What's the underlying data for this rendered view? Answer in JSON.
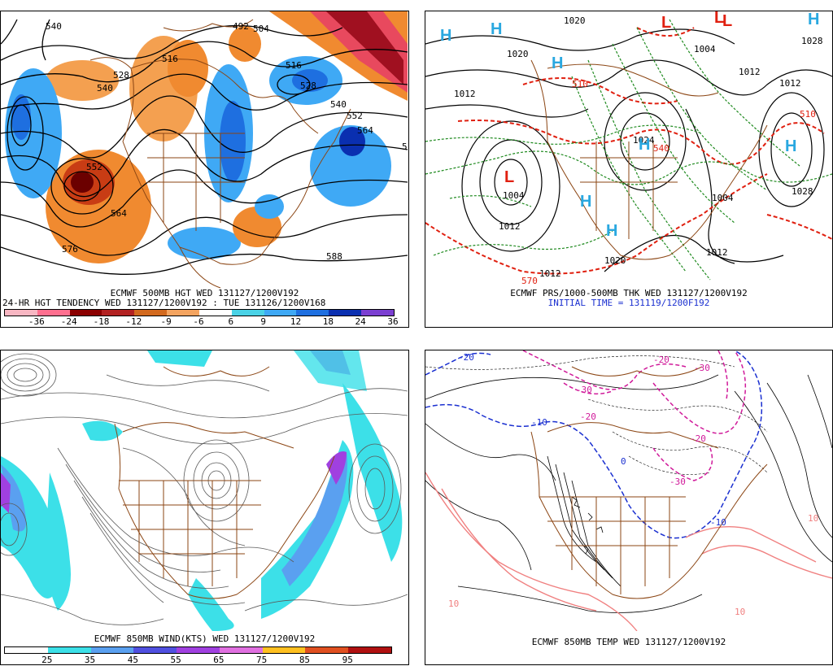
{
  "panels": {
    "p1": {
      "caption_1": "ECMWF 500MB HGT WED 131127/1200V192",
      "caption_2": "24-HR HGT TENDENCY WED 131127/1200V192 : TUE 131126/1200V168",
      "contour_labels": [
        "540",
        "492",
        "504",
        "528",
        "516",
        "540",
        "516",
        "528",
        "540",
        "552",
        "564",
        "552",
        "564",
        "576",
        "588",
        "5"
      ],
      "legend_ticks": [
        "-36",
        "-24",
        "-18",
        "-12",
        "-9",
        "-6",
        "6",
        "9",
        "12",
        "18",
        "24",
        "36"
      ],
      "legend_colors": [
        "#f7b6c2",
        "#ff6f8f",
        "#8b0000",
        "#b22222",
        "#d2691e",
        "#f4a460",
        "#ffffff",
        "#4ad2e6",
        "#3fa9f5",
        "#1e6fe0",
        "#0a2fb0",
        "#7b3fd1"
      ]
    },
    "p2": {
      "caption_1": "ECMWF PRS/1000-500MB THK WED 131127/1200V192",
      "caption_2": "INITIAL TIME = 131119/1200F192",
      "pressure_labels": [
        "1020",
        "1020",
        "1012",
        "1004",
        "1012",
        "1012",
        "1024",
        "1004",
        "1028",
        "1012",
        "1020",
        "1012",
        "1028",
        "1004",
        "1012"
      ],
      "thickness_labels": [
        "510",
        "540",
        "570",
        "510"
      ],
      "highs": [
        "H",
        "H",
        "H",
        "H",
        "H",
        "H",
        "H",
        "H"
      ],
      "lows": [
        "L",
        "L",
        "L",
        "L"
      ]
    },
    "p3": {
      "caption_1": "ECMWF 850MB WIND(KTS) WED 131127/1200V192",
      "legend_ticks": [
        "25",
        "35",
        "45",
        "55",
        "65",
        "75",
        "85",
        "95"
      ],
      "legend_colors": [
        "#ffffff",
        "#3ce0e8",
        "#5aa0f0",
        "#5050e0",
        "#a040e0",
        "#e070e0",
        "#ffc020",
        "#e05020",
        "#b01010"
      ]
    },
    "p4": {
      "caption_1": "ECMWF 850MB TEMP WED 131127/1200V192",
      "temp_labels": [
        "-20",
        "-30",
        "-20",
        "-10",
        "-20",
        "-20",
        "-30",
        "-10",
        "10",
        "10",
        "-30",
        "0",
        "10"
      ]
    }
  }
}
